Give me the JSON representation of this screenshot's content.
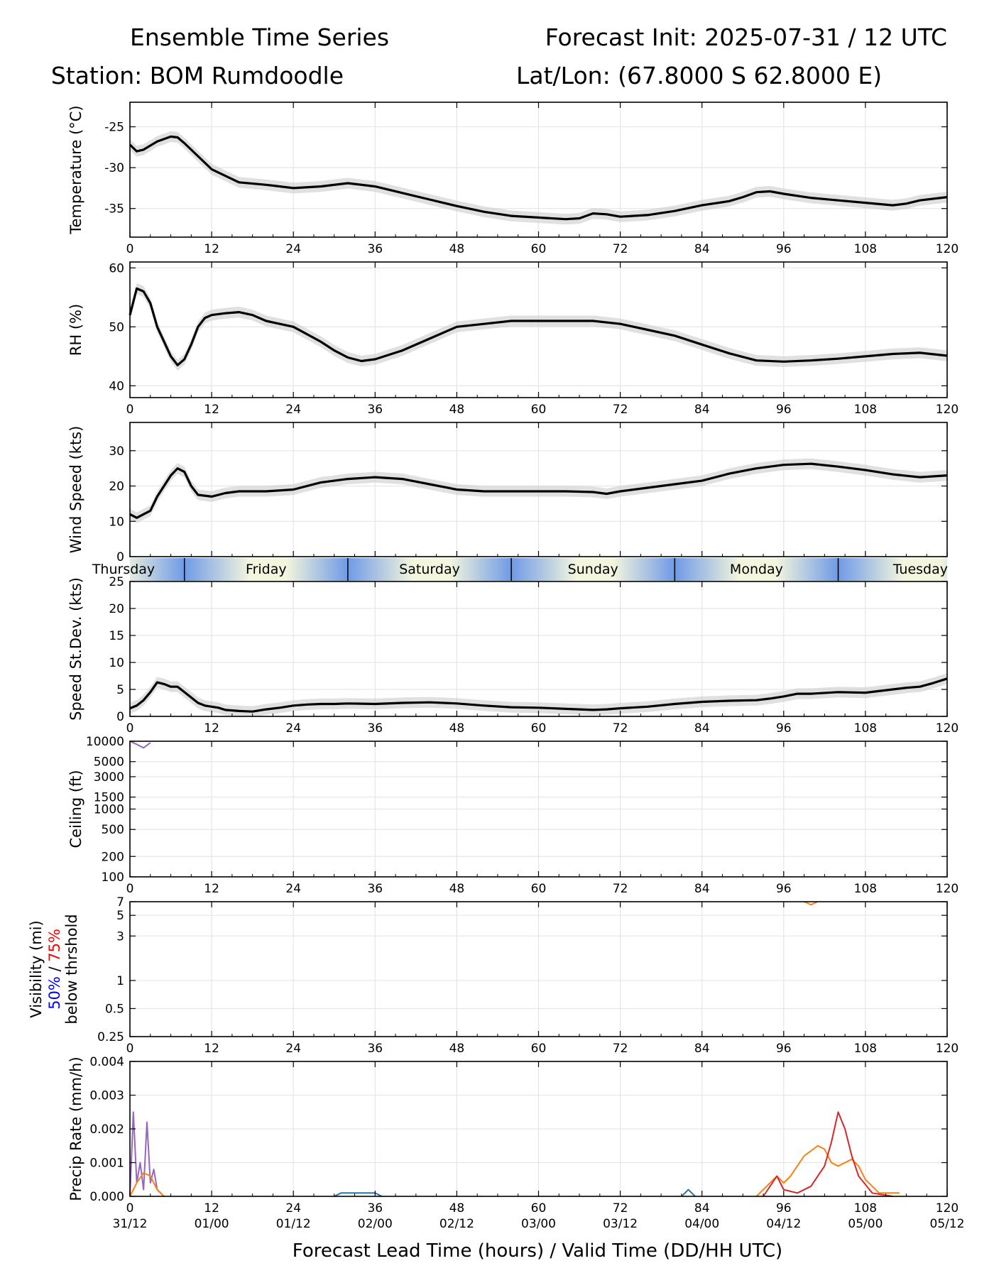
{
  "header": {
    "title_left": "Ensemble Time Series",
    "title_right": "Forecast Init: 2025-07-31 / 12 UTC",
    "station": "Station: BOM Rumdoodle",
    "latlon": "Lat/Lon: (67.8000 S 62.8000 E)"
  },
  "colors": {
    "mean": "#000000",
    "spread": "#cccccc",
    "grid": "#e6e6e6",
    "day_dark": "#6f9ae6",
    "day_light": "#f3f6dc",
    "vis_50": "#0000ff",
    "vis_75": "#ff0000",
    "members": [
      "#1f77b4",
      "#ff7f0e",
      "#2ca02c",
      "#d62728",
      "#9467bd",
      "#8c564b",
      "#e377c2",
      "#7f7f7f",
      "#bcbd22",
      "#17becf"
    ]
  },
  "x_axis": {
    "range": [
      0,
      120
    ],
    "ticks": [
      "0",
      "12",
      "24",
      "36",
      "48",
      "60",
      "72",
      "84",
      "96",
      "108",
      "120"
    ],
    "valid_times": [
      "31/12",
      "01/00",
      "01/12",
      "02/00",
      "02/12",
      "03/00",
      "03/12",
      "04/00",
      "04/12",
      "05/00",
      "05/12"
    ],
    "label": "Forecast Lead Time (hours) / Valid Time (DD/HH UTC)"
  },
  "day_bar": {
    "days": [
      "Thursday",
      "Friday",
      "Saturday",
      "Sunday",
      "Monday",
      "Tuesday"
    ],
    "boundaries_hours": [
      8,
      32,
      56,
      80,
      104
    ]
  },
  "chart_data": [
    {
      "type": "line",
      "ylabel": "Temperature (°C)",
      "ylim": [
        -38.5,
        -22
      ],
      "yticks": [
        "-25",
        "-30",
        "-35"
      ],
      "ytick_values": [
        -25,
        -30,
        -35
      ],
      "grid": true,
      "series": [
        {
          "x": [
            0,
            1,
            2,
            4,
            6,
            7,
            8,
            10,
            12,
            16,
            20,
            24,
            28,
            32,
            36,
            40,
            44,
            48,
            52,
            56,
            60,
            64,
            66,
            68,
            70,
            72,
            76,
            80,
            84,
            88,
            90,
            92,
            94,
            96,
            100,
            104,
            108,
            112,
            114,
            116,
            120
          ],
          "values": [
            -27.2,
            -28,
            -27.8,
            -26.8,
            -26.2,
            -26.3,
            -27,
            -28.6,
            -30.2,
            -31.8,
            -32.1,
            -32.5,
            -32.3,
            -31.9,
            -32.3,
            -33.1,
            -33.9,
            -34.7,
            -35.4,
            -35.9,
            -36.1,
            -36.3,
            -36.2,
            -35.6,
            -35.7,
            -36.0,
            -35.8,
            -35.3,
            -34.6,
            -34.1,
            -33.6,
            -33.0,
            -32.9,
            -33.2,
            -33.7,
            -34.0,
            -34.3,
            -34.6,
            -34.4,
            -34.0,
            -33.6
          ]
        }
      ]
    },
    {
      "type": "line",
      "ylabel": "RH (%)",
      "ylim": [
        38,
        61
      ],
      "yticks": [
        "60",
        "50",
        "40"
      ],
      "ytick_values": [
        60,
        50,
        40
      ],
      "grid": true,
      "series": [
        {
          "x": [
            0,
            1,
            2,
            3,
            4,
            5,
            6,
            7,
            8,
            9,
            10,
            11,
            12,
            14,
            16,
            18,
            20,
            24,
            28,
            30,
            32,
            34,
            36,
            40,
            44,
            48,
            52,
            56,
            60,
            64,
            68,
            72,
            76,
            80,
            84,
            88,
            92,
            96,
            100,
            104,
            108,
            112,
            116,
            120
          ],
          "values": [
            52,
            56.5,
            56,
            54,
            50,
            47.5,
            45,
            43.5,
            44.5,
            47,
            50,
            51.5,
            52,
            52.3,
            52.5,
            52,
            51,
            50,
            47.5,
            46,
            44.8,
            44.2,
            44.5,
            46,
            48,
            50,
            50.5,
            51,
            51,
            51,
            51,
            50.5,
            49.5,
            48.5,
            47,
            45.5,
            44.3,
            44.1,
            44.3,
            44.6,
            45,
            45.4,
            45.6,
            45.1
          ]
        }
      ]
    },
    {
      "type": "line",
      "ylabel": "Wind Speed (kts)",
      "ylim": [
        0,
        38
      ],
      "yticks": [
        "0",
        "10",
        "20",
        "30"
      ],
      "ytick_values": [
        0,
        10,
        20,
        30
      ],
      "grid": true,
      "series": [
        {
          "x": [
            0,
            1,
            2,
            3,
            4,
            5,
            6,
            7,
            8,
            9,
            10,
            12,
            14,
            16,
            20,
            24,
            28,
            32,
            36,
            40,
            44,
            48,
            52,
            56,
            60,
            64,
            68,
            70,
            72,
            76,
            80,
            84,
            88,
            92,
            96,
            100,
            104,
            108,
            112,
            116,
            120
          ],
          "values": [
            12,
            11,
            12,
            13,
            17,
            20,
            23,
            25,
            24,
            20,
            17.5,
            17,
            18,
            18.5,
            18.5,
            19,
            21,
            22,
            22.5,
            22,
            20.5,
            19,
            18.5,
            18.5,
            18.5,
            18.5,
            18.3,
            17.8,
            18.5,
            19.5,
            20.5,
            21.5,
            23.5,
            25,
            26,
            26.3,
            25.5,
            24.5,
            23.3,
            22.5,
            23
          ]
        }
      ]
    },
    {
      "type": "line",
      "ylabel": "Speed St.Dev. (kts)",
      "ylim": [
        0,
        25
      ],
      "yticks": [
        "0",
        "5",
        "10",
        "15",
        "20",
        "25"
      ],
      "ytick_values": [
        0,
        5,
        10,
        15,
        20,
        25
      ],
      "grid": true,
      "series": [
        {
          "x": [
            0,
            1,
            2,
            3,
            4,
            5,
            6,
            7,
            8,
            9,
            10,
            11,
            12,
            13,
            14,
            16,
            18,
            20,
            22,
            24,
            26,
            28,
            30,
            32,
            36,
            40,
            44,
            48,
            52,
            56,
            60,
            64,
            66,
            68,
            70,
            72,
            76,
            80,
            84,
            88,
            92,
            94,
            96,
            98,
            100,
            104,
            108,
            112,
            114,
            116,
            118,
            120
          ],
          "values": [
            1.5,
            2,
            3,
            4.5,
            6.3,
            6,
            5.5,
            5.5,
            4.5,
            3.5,
            2.5,
            2,
            1.8,
            1.6,
            1.2,
            1,
            0.9,
            1.3,
            1.6,
            2,
            2.2,
            2.3,
            2.3,
            2.4,
            2.3,
            2.5,
            2.6,
            2.4,
            2,
            1.7,
            1.6,
            1.4,
            1.3,
            1.2,
            1.3,
            1.5,
            1.8,
            2.3,
            2.7,
            2.9,
            3,
            3.3,
            3.7,
            4.2,
            4.2,
            4.5,
            4.4,
            5,
            5.3,
            5.5,
            6.2,
            7
          ]
        }
      ]
    },
    {
      "type": "line",
      "ylabel": "Ceiling (ft)",
      "yscale": "log",
      "ylim": [
        100,
        10000
      ],
      "yticks": [
        "10000",
        "5000",
        "3000",
        "1500",
        "1000",
        "500",
        "200",
        "100"
      ],
      "ytick_values": [
        10000,
        5000,
        3000,
        1500,
        1000,
        500,
        200,
        100
      ],
      "grid": true,
      "series": [
        {
          "x": [
            0,
            1,
            2,
            3
          ],
          "values": [
            10000,
            9000,
            8000,
            9500
          ]
        }
      ]
    },
    {
      "type": "line",
      "ylabel": "Visibility (mi)",
      "ylabel_parts": [
        "50%",
        "/",
        "75%",
        "below thrshold"
      ],
      "yscale": "log",
      "ylim": [
        0.25,
        7
      ],
      "yticks": [
        "7",
        "5",
        "3",
        "1",
        "0.5",
        "0.25"
      ],
      "ytick_values": [
        7,
        5,
        3,
        1,
        0.5,
        0.25
      ],
      "grid": true,
      "series": [
        {
          "x": [
            99,
            100,
            101
          ],
          "values": [
            7,
            6.5,
            7
          ]
        }
      ]
    },
    {
      "type": "line",
      "ylabel": "Precip Rate (mm/h)",
      "ylim": [
        0,
        0.004
      ],
      "yticks": [
        "0.000",
        "0.001",
        "0.002",
        "0.003",
        "0.004"
      ],
      "ytick_values": [
        0,
        0.001,
        0.002,
        0.003,
        0.004
      ],
      "grid": true,
      "series": [
        {
          "x": [
            92,
            93.5,
            95,
            96,
            97,
            99,
            101,
            102,
            103,
            104,
            105,
            106,
            107,
            108,
            110,
            113
          ],
          "values": [
            0,
            0.0003,
            0.0006,
            0.0004,
            0.0006,
            0.0012,
            0.0015,
            0.0014,
            0.001,
            0.0009,
            0.001,
            0.0011,
            0.0009,
            0.0005,
            0.0001,
            0.0001
          ]
        },
        {
          "x": [
            93,
            95,
            96,
            98,
            100,
            102,
            103,
            104,
            105,
            106,
            107,
            109,
            112
          ],
          "values": [
            0,
            0.0006,
            0.0002,
            0.0001,
            0.0003,
            0.0009,
            0.0016,
            0.0025,
            0.002,
            0.0012,
            0.0006,
            0.0001,
            0
          ]
        },
        {
          "x": [
            0,
            0.5,
            1,
            1.5,
            2,
            2.5,
            3,
            3.5,
            4,
            5
          ],
          "values": [
            0,
            0.0025,
            0.0004,
            0.001,
            0.0002,
            0.0022,
            0.0004,
            0.0008,
            0.0002,
            0
          ]
        },
        {
          "x": [
            0,
            1,
            2,
            3,
            4,
            5
          ],
          "values": [
            0,
            0.0004,
            0.0007,
            0.0006,
            0.0002,
            0
          ]
        },
        {
          "x": [
            30,
            31,
            33,
            35,
            36,
            37
          ],
          "values": [
            0,
            0.0001,
            0.0001,
            0.0001,
            0.0001,
            0
          ]
        },
        {
          "x": [
            81,
            81.5,
            82,
            82.5,
            83
          ],
          "values": [
            0,
            0.0001,
            0.0002,
            0.0001,
            0
          ]
        }
      ]
    }
  ]
}
